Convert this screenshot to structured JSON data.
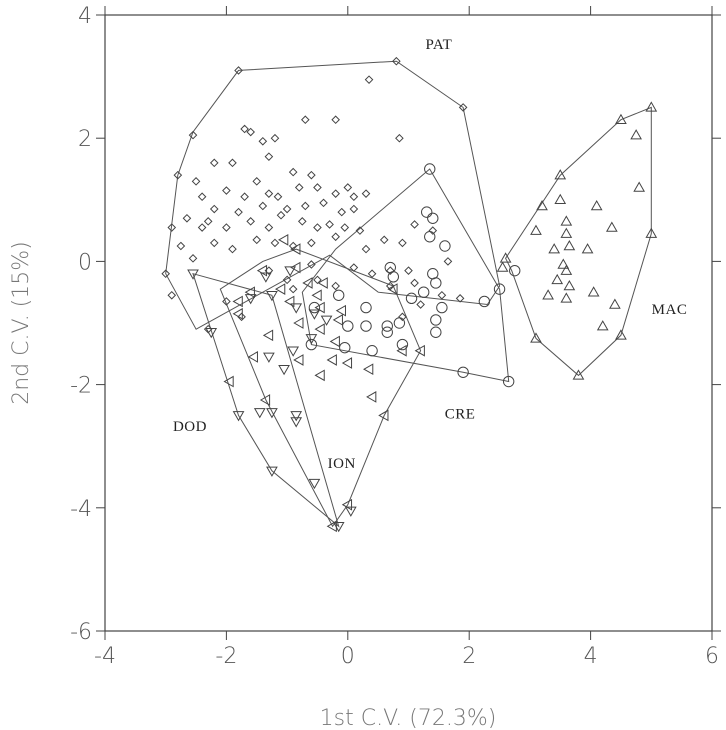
{
  "chart_data": {
    "type": "scatter",
    "title": "",
    "xlabel": "1st C.V. (72.3%)",
    "ylabel": "2nd C.V. (15%)",
    "xlim": [
      -4,
      6
    ],
    "ylim": [
      -6,
      4
    ],
    "xticks": [
      -4,
      -2,
      0,
      2,
      4,
      6
    ],
    "yticks": [
      -6,
      -4,
      -2,
      0,
      2,
      4
    ],
    "xtick_labels": [
      "-4",
      "-2",
      "0",
      "2",
      "4",
      "6"
    ],
    "ytick_labels": [
      "-6",
      "-4",
      "-2",
      "0",
      "2",
      "4"
    ],
    "grid": false,
    "series": [
      {
        "name": "PAT",
        "marker": "diamond",
        "label_at": [
          1.5,
          3.45
        ],
        "hull": [
          [
            -1.8,
            3.1
          ],
          [
            0.8,
            3.25
          ],
          [
            1.9,
            2.5
          ],
          [
            2.5,
            -0.4
          ],
          [
            2.3,
            -0.7
          ],
          [
            0.5,
            -0.5
          ],
          [
            -0.3,
            0.1
          ],
          [
            -2.5,
            -1.1
          ],
          [
            -3.0,
            -0.2
          ],
          [
            -2.8,
            1.4
          ],
          [
            -2.55,
            2.1
          ]
        ],
        "points": [
          [
            -1.8,
            3.1
          ],
          [
            0.8,
            3.25
          ],
          [
            0.35,
            2.95
          ],
          [
            1.9,
            2.5
          ],
          [
            -2.55,
            2.05
          ],
          [
            -2.8,
            1.4
          ],
          [
            -2.9,
            0.55
          ],
          [
            -3.0,
            -0.2
          ],
          [
            -2.9,
            -0.55
          ],
          [
            -1.2,
            2.0
          ],
          [
            -1.6,
            2.1
          ],
          [
            -0.7,
            2.3
          ],
          [
            -0.2,
            2.3
          ],
          [
            0.85,
            2.0
          ],
          [
            -1.4,
            1.95
          ],
          [
            -1.7,
            2.15
          ],
          [
            -1.3,
            1.7
          ],
          [
            -2.2,
            1.6
          ],
          [
            -1.9,
            1.6
          ],
          [
            -2.5,
            1.3
          ],
          [
            -1.5,
            1.3
          ],
          [
            -0.9,
            1.45
          ],
          [
            -0.6,
            1.4
          ],
          [
            -2.4,
            1.05
          ],
          [
            -2.0,
            1.15
          ],
          [
            -1.7,
            1.05
          ],
          [
            -1.3,
            1.1
          ],
          [
            -1.15,
            1.05
          ],
          [
            -0.8,
            1.2
          ],
          [
            -0.5,
            1.2
          ],
          [
            -0.2,
            1.1
          ],
          [
            0.0,
            1.2
          ],
          [
            0.1,
            1.05
          ],
          [
            0.3,
            1.1
          ],
          [
            -2.2,
            0.85
          ],
          [
            -1.8,
            0.8
          ],
          [
            -1.4,
            0.9
          ],
          [
            -1.0,
            0.85
          ],
          [
            -0.7,
            0.9
          ],
          [
            -0.4,
            0.95
          ],
          [
            -0.1,
            0.8
          ],
          [
            0.1,
            0.85
          ],
          [
            -2.65,
            0.7
          ],
          [
            -2.3,
            0.65
          ],
          [
            -2.0,
            0.55
          ],
          [
            -1.6,
            0.65
          ],
          [
            -1.3,
            0.55
          ],
          [
            -1.1,
            0.75
          ],
          [
            -0.75,
            0.65
          ],
          [
            -0.5,
            0.55
          ],
          [
            -0.3,
            0.6
          ],
          [
            -0.05,
            0.55
          ],
          [
            0.2,
            0.5
          ],
          [
            -2.4,
            0.55
          ],
          [
            -2.2,
            0.3
          ],
          [
            -1.9,
            0.2
          ],
          [
            -1.5,
            0.35
          ],
          [
            -1.2,
            0.3
          ],
          [
            -0.9,
            0.25
          ],
          [
            -0.6,
            0.3
          ],
          [
            -0.2,
            0.4
          ],
          [
            0.3,
            0.2
          ],
          [
            0.6,
            0.35
          ],
          [
            0.9,
            0.3
          ],
          [
            -2.75,
            0.25
          ],
          [
            -2.55,
            0.05
          ],
          [
            -1.3,
            -0.15
          ],
          [
            -0.6,
            -0.05
          ],
          [
            0.1,
            -0.1
          ],
          [
            0.4,
            -0.2
          ],
          [
            0.7,
            -0.15
          ],
          [
            1.0,
            -0.15
          ],
          [
            1.65,
            0.0
          ],
          [
            1.4,
            0.5
          ],
          [
            1.1,
            0.6
          ],
          [
            -2.3,
            -1.1
          ],
          [
            -2.0,
            -0.65
          ],
          [
            -1.75,
            -0.9
          ],
          [
            -0.9,
            -0.45
          ],
          [
            -0.2,
            -0.4
          ],
          [
            0.9,
            -0.9
          ],
          [
            1.2,
            -0.7
          ],
          [
            1.85,
            -0.6
          ],
          [
            1.55,
            -0.55
          ],
          [
            0.7,
            -0.4
          ],
          [
            1.1,
            -0.35
          ],
          [
            -0.5,
            -0.3
          ],
          [
            -1.0,
            -0.3
          ]
        ]
      },
      {
        "name": "MAC",
        "marker": "triangle-up",
        "label_at": [
          5.3,
          -0.85
        ],
        "hull": [
          [
            2.6,
            0.05
          ],
          [
            3.5,
            1.4
          ],
          [
            4.5,
            2.3
          ],
          [
            5.0,
            2.5
          ],
          [
            5.0,
            0.45
          ],
          [
            4.5,
            -1.2
          ],
          [
            3.8,
            -1.85
          ],
          [
            3.1,
            -1.25
          ],
          [
            2.7,
            -0.15
          ]
        ],
        "points": [
          [
            2.6,
            0.05
          ],
          [
            2.55,
            -0.1
          ],
          [
            3.5,
            1.4
          ],
          [
            4.5,
            2.3
          ],
          [
            5.0,
            2.5
          ],
          [
            4.75,
            2.05
          ],
          [
            4.8,
            1.2
          ],
          [
            5.0,
            0.45
          ],
          [
            3.2,
            0.9
          ],
          [
            3.5,
            1.0
          ],
          [
            3.6,
            0.65
          ],
          [
            4.1,
            0.9
          ],
          [
            3.1,
            0.5
          ],
          [
            3.4,
            0.2
          ],
          [
            3.65,
            0.25
          ],
          [
            3.95,
            0.2
          ],
          [
            3.55,
            -0.05
          ],
          [
            3.6,
            -0.15
          ],
          [
            3.65,
            -0.4
          ],
          [
            3.45,
            -0.3
          ],
          [
            3.3,
            -0.55
          ],
          [
            3.6,
            -0.6
          ],
          [
            4.05,
            -0.5
          ],
          [
            4.4,
            -0.7
          ],
          [
            4.2,
            -1.05
          ],
          [
            3.1,
            -1.25
          ],
          [
            4.5,
            -1.2
          ],
          [
            3.8,
            -1.85
          ],
          [
            3.6,
            0.45
          ],
          [
            4.35,
            0.55
          ]
        ]
      },
      {
        "name": "CRE",
        "marker": "circle",
        "label_at": [
          1.85,
          -2.55
        ],
        "hull": [
          [
            1.35,
            1.5
          ],
          [
            2.5,
            -0.45
          ],
          [
            2.65,
            -1.95
          ],
          [
            1.9,
            -1.8
          ],
          [
            -0.6,
            -1.35
          ],
          [
            -0.75,
            -0.5
          ],
          [
            -0.2,
            0.2
          ]
        ],
        "points": [
          [
            1.35,
            1.5
          ],
          [
            1.3,
            0.8
          ],
          [
            1.4,
            0.7
          ],
          [
            1.35,
            0.4
          ],
          [
            1.6,
            0.25
          ],
          [
            0.7,
            -0.1
          ],
          [
            0.75,
            -0.25
          ],
          [
            1.45,
            -0.35
          ],
          [
            1.25,
            -0.5
          ],
          [
            2.25,
            -0.65
          ],
          [
            2.5,
            -0.45
          ],
          [
            2.75,
            -0.15
          ],
          [
            1.55,
            -0.75
          ],
          [
            1.45,
            -0.95
          ],
          [
            0.85,
            -1.0
          ],
          [
            1.45,
            -1.15
          ],
          [
            0.65,
            -1.05
          ],
          [
            0.65,
            -1.15
          ],
          [
            0.3,
            -1.05
          ],
          [
            0.0,
            -1.05
          ],
          [
            -0.6,
            -1.35
          ],
          [
            -0.05,
            -1.4
          ],
          [
            0.4,
            -1.45
          ],
          [
            0.9,
            -1.35
          ],
          [
            1.9,
            -1.8
          ],
          [
            2.65,
            -1.95
          ],
          [
            -0.55,
            -0.75
          ],
          [
            -0.15,
            -0.55
          ],
          [
            0.3,
            -0.75
          ],
          [
            1.05,
            -0.6
          ],
          [
            1.4,
            -0.2
          ]
        ]
      },
      {
        "name": "ION",
        "marker": "triangle-left",
        "label_at": [
          -0.1,
          -3.35
        ],
        "hull": [
          [
            -0.85,
            0.2
          ],
          [
            0.75,
            -0.4
          ],
          [
            1.2,
            -1.45
          ],
          [
            0.6,
            -2.5
          ],
          [
            0.0,
            -3.95
          ],
          [
            -0.25,
            -4.3
          ],
          [
            -1.35,
            -2.25
          ],
          [
            -2.1,
            -0.45
          ],
          [
            -1.4,
            0.0
          ]
        ],
        "points": [
          [
            -0.85,
            0.2
          ],
          [
            -1.05,
            0.35
          ],
          [
            -0.85,
            -0.1
          ],
          [
            -0.4,
            -0.35
          ],
          [
            -0.65,
            -0.35
          ],
          [
            -1.4,
            -0.15
          ],
          [
            -1.1,
            -0.45
          ],
          [
            -1.6,
            -0.5
          ],
          [
            -1.8,
            -0.65
          ],
          [
            -1.8,
            -0.85
          ],
          [
            -0.95,
            -0.65
          ],
          [
            -0.5,
            -0.55
          ],
          [
            -0.45,
            -0.75
          ],
          [
            -0.1,
            -0.8
          ],
          [
            -0.15,
            -0.95
          ],
          [
            -0.8,
            -1.0
          ],
          [
            -0.45,
            -1.1
          ],
          [
            -0.2,
            -1.3
          ],
          [
            -0.8,
            -1.6
          ],
          [
            -1.55,
            -1.55
          ],
          [
            -1.95,
            -1.95
          ],
          [
            -0.25,
            -1.6
          ],
          [
            0.0,
            -1.65
          ],
          [
            0.35,
            -1.75
          ],
          [
            0.75,
            -0.45
          ],
          [
            1.2,
            -1.45
          ],
          [
            0.9,
            -1.45
          ],
          [
            -0.45,
            -1.85
          ],
          [
            0.4,
            -2.2
          ],
          [
            0.6,
            -2.5
          ],
          [
            -1.35,
            -2.25
          ],
          [
            0.0,
            -3.95
          ],
          [
            -0.25,
            -4.3
          ],
          [
            -1.3,
            -1.2
          ]
        ]
      },
      {
        "name": "DOD",
        "marker": "triangle-down",
        "label_at": [
          -2.6,
          -2.75
        ],
        "hull": [
          [
            -2.55,
            -0.2
          ],
          [
            -1.25,
            -0.55
          ],
          [
            -0.15,
            -4.3
          ],
          [
            -1.25,
            -3.4
          ],
          [
            -1.8,
            -2.5
          ]
        ],
        "points": [
          [
            -2.55,
            -0.2
          ],
          [
            -2.25,
            -1.15
          ],
          [
            -1.8,
            -2.5
          ],
          [
            -1.35,
            -0.25
          ],
          [
            -1.6,
            -0.6
          ],
          [
            -1.25,
            -0.55
          ],
          [
            -0.85,
            -0.75
          ],
          [
            -0.55,
            -0.85
          ],
          [
            -0.35,
            -0.95
          ],
          [
            -0.6,
            -1.25
          ],
          [
            -0.9,
            -1.45
          ],
          [
            -1.05,
            -1.75
          ],
          [
            -1.3,
            -1.55
          ],
          [
            -1.25,
            -2.45
          ],
          [
            -1.45,
            -2.45
          ],
          [
            -0.85,
            -2.5
          ],
          [
            -0.85,
            -2.6
          ],
          [
            -1.25,
            -3.4
          ],
          [
            -0.55,
            -3.6
          ],
          [
            0.05,
            -4.05
          ],
          [
            -0.15,
            -4.3
          ],
          [
            -0.95,
            -0.15
          ]
        ]
      }
    ]
  }
}
